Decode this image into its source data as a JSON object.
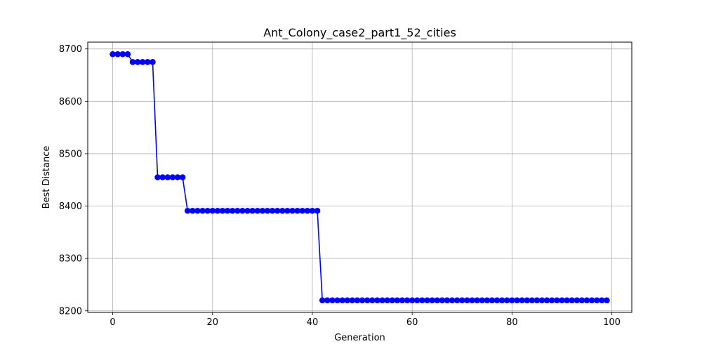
{
  "chart_data": {
    "type": "line",
    "title": "Ant_Colony_case2_part1_52_cities",
    "xlabel": "Generation",
    "ylabel": "Best Distance",
    "xlim": [
      -5,
      104
    ],
    "ylim": [
      8197,
      8713
    ],
    "xticks": [
      0,
      20,
      40,
      60,
      80,
      100
    ],
    "yticks": [
      8200,
      8300,
      8400,
      8500,
      8600,
      8700
    ],
    "grid": true,
    "line_color": "#0000ff",
    "marker": "circle",
    "series": [
      {
        "segments": [
          {
            "from": 0,
            "to": 3,
            "value": 8690
          },
          {
            "from": 4,
            "to": 8,
            "value": 8675
          },
          {
            "from": 9,
            "to": 14,
            "value": 8455
          },
          {
            "from": 15,
            "to": 41,
            "value": 8391
          },
          {
            "from": 42,
            "to": 99,
            "value": 8220
          }
        ]
      }
    ]
  }
}
